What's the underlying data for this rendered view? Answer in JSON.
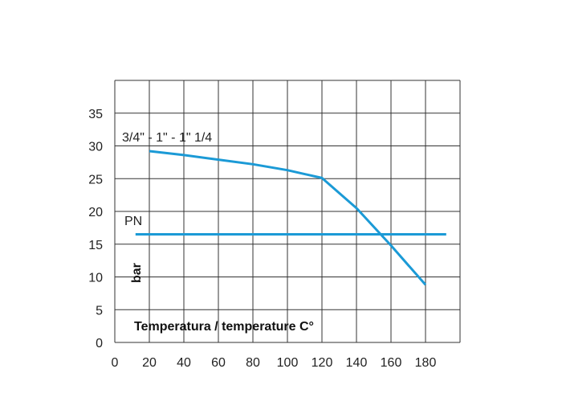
{
  "chart_data": {
    "type": "line",
    "xlabel": "Temperatura / temperature C°",
    "ylabel": "bar",
    "x_ticks": [
      "0",
      "20",
      "40",
      "60",
      "80",
      "100",
      "120",
      "140",
      "160",
      "180"
    ],
    "y_ticks": [
      "0",
      "5",
      "10",
      "15",
      "20",
      "25",
      "30",
      "35"
    ],
    "xlim": [
      0,
      200
    ],
    "ylim": [
      0,
      40
    ],
    "grid": true,
    "line_color": "#1b9ad6",
    "series": [
      {
        "name": "3/4\" - 1\" - 1\" 1/4",
        "x": [
          20,
          40,
          60,
          80,
          100,
          120,
          140,
          160,
          180
        ],
        "y": [
          29.2,
          28.6,
          27.9,
          27.2,
          26.3,
          25.1,
          20.5,
          14.8,
          8.8
        ]
      },
      {
        "name": "PN",
        "x": [
          12,
          192
        ],
        "y": [
          16.5,
          16.5
        ]
      }
    ]
  }
}
